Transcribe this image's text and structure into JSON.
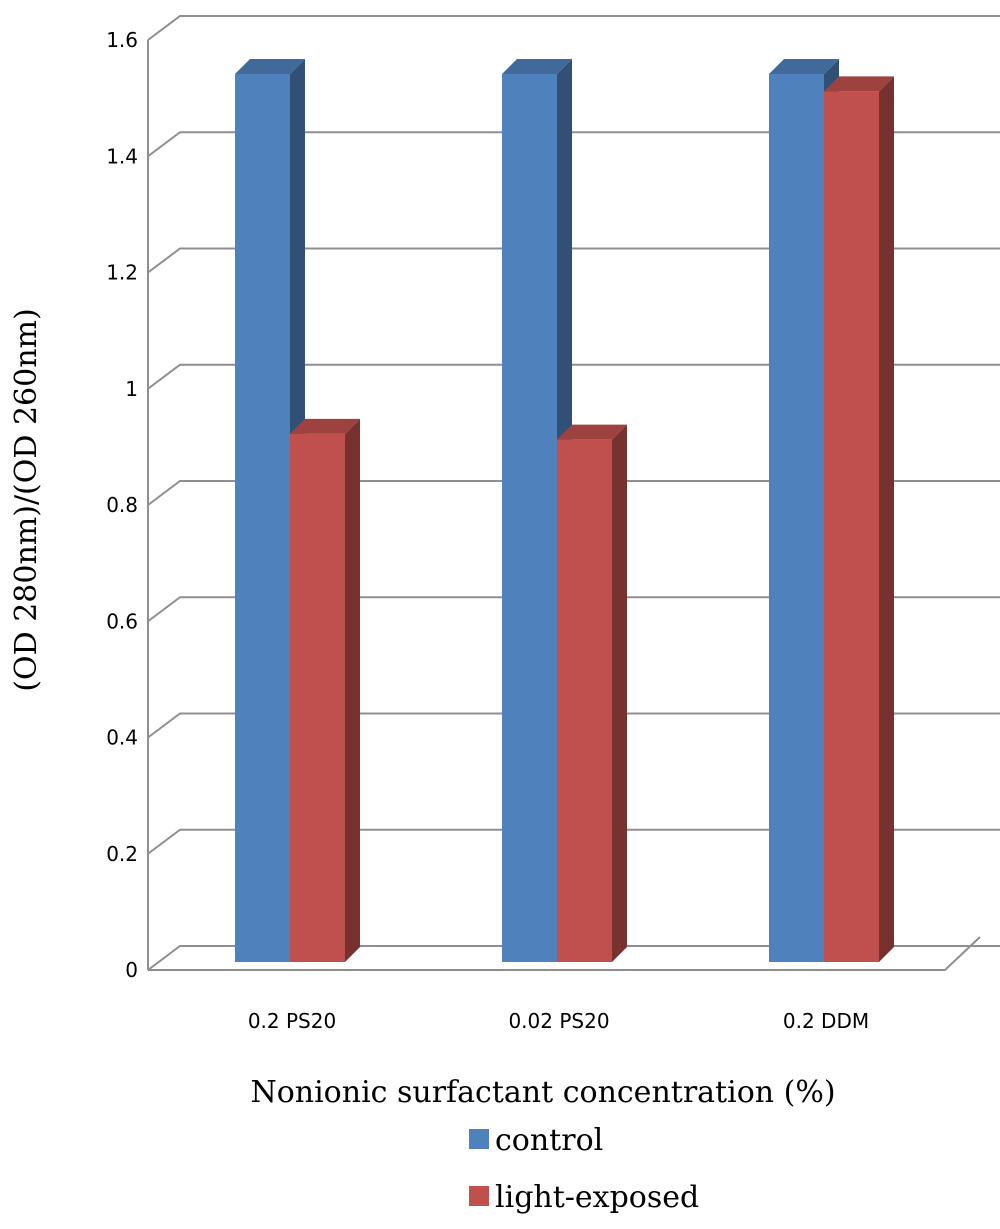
{
  "chart_data": {
    "type": "bar",
    "style": "3d-clustered-column",
    "categories": [
      "0.2 PS20",
      "0.02 PS20",
      "0.2 DDM"
    ],
    "series": [
      {
        "name": "control",
        "values": [
          1.53,
          1.53,
          1.53
        ],
        "color": "#4F81BD"
      },
      {
        "name": "light-exposed",
        "values": [
          0.91,
          0.9,
          1.5
        ],
        "color": "#C0504D"
      }
    ],
    "xlabel": "Nonionic surfactant concentration (%)",
    "ylabel": "(OD 280nm)/(OD 260nm)",
    "ylim": [
      0,
      1.6
    ],
    "yticks": [
      "0",
      "0.2",
      "0.4",
      "0.6",
      "0.8",
      "1",
      "1.2",
      "1.4",
      "1.6"
    ],
    "grid": true,
    "legend": "bottom"
  }
}
